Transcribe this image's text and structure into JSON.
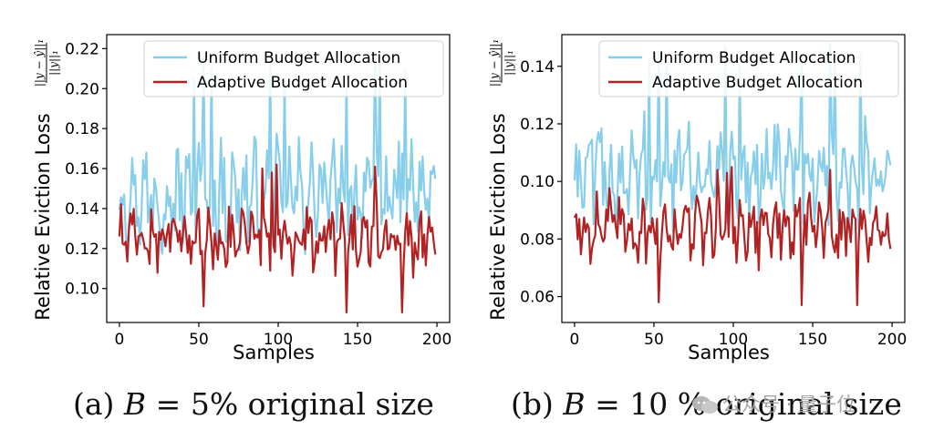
{
  "chart_data": [
    {
      "type": "line",
      "panel": "a",
      "xlabel": "Samples",
      "ylabel": "Relative Eviction Loss",
      "ylabel_formula": "||y − ŷ||₁ / ||y||₁",
      "xlim": [
        -8,
        208
      ],
      "ylim": [
        0.083,
        0.227
      ],
      "xticks": [
        "0",
        "50",
        "100",
        "150",
        "200"
      ],
      "yticks": [
        "0.10",
        "0.12",
        "0.14",
        "0.16",
        "0.18",
        "0.20",
        "0.22"
      ],
      "legend": [
        "Uniform Budget Allocation",
        "Adaptive Budget Allocation"
      ],
      "legend_position": "top-right",
      "series": [
        {
          "name": "Uniform Budget Allocation",
          "color": "#87ceeb",
          "mean": 0.147,
          "amp": 0.022,
          "spikes": [
            [
              47,
              0.205
            ],
            [
              53,
              0.215
            ],
            [
              58,
              0.21
            ],
            [
              95,
              0.212
            ],
            [
              104,
              0.205
            ],
            [
              143,
              0.207
            ],
            [
              161,
              0.218
            ],
            [
              164,
              0.212
            ],
            [
              180,
              0.21
            ]
          ]
        },
        {
          "name": "Adaptive Budget Allocation",
          "color": "#b22222",
          "mean": 0.125,
          "amp": 0.013,
          "spikes": [
            [
              53,
              0.091
            ],
            [
              90,
              0.16
            ],
            [
              96,
              0.158
            ],
            [
              143,
              0.088
            ],
            [
              161,
              0.161
            ],
            [
              178,
              0.088
            ],
            [
              99,
              0.162
            ]
          ]
        }
      ]
    },
    {
      "type": "line",
      "panel": "b",
      "xlabel": "Samples",
      "ylabel": "Relative Eviction Loss",
      "ylabel_formula": "||y − ŷ||₁ / ||y||₁",
      "xlim": [
        -8,
        208
      ],
      "ylim": [
        0.051,
        0.151
      ],
      "xticks": [
        "0",
        "50",
        "100",
        "150",
        "200"
      ],
      "yticks": [
        "0.06",
        "0.08",
        "0.10",
        "0.12",
        "0.14"
      ],
      "legend": [
        "Uniform Budget Allocation",
        "Adaptive Budget Allocation"
      ],
      "legend_position": "top-right",
      "series": [
        {
          "name": "Uniform Budget Allocation",
          "color": "#87ceeb",
          "mean": 0.102,
          "amp": 0.016,
          "spikes": [
            [
              47,
              0.142
            ],
            [
              53,
              0.145
            ],
            [
              58,
              0.14
            ],
            [
              95,
              0.147
            ],
            [
              104,
              0.14
            ],
            [
              143,
              0.144
            ],
            [
              161,
              0.148
            ],
            [
              164,
              0.144
            ],
            [
              180,
              0.145
            ]
          ]
        },
        {
          "name": "Adaptive Budget Allocation",
          "color": "#b22222",
          "mean": 0.084,
          "amp": 0.01,
          "spikes": [
            [
              53,
              0.058
            ],
            [
              90,
              0.104
            ],
            [
              96,
              0.103
            ],
            [
              143,
              0.057
            ],
            [
              161,
              0.104
            ],
            [
              178,
              0.057
            ],
            [
              99,
              0.105
            ]
          ]
        }
      ]
    }
  ],
  "captions": {
    "a_prefix": "(a) ",
    "a_var": "B",
    "a_suffix": " = 5% original size",
    "b_prefix": "(b) ",
    "b_var": "B",
    "b_suffix": " = 10 % original size"
  },
  "watermark": {
    "text": "公众号 · 量子位",
    "logo_icon": "wechat-logo-icon"
  }
}
